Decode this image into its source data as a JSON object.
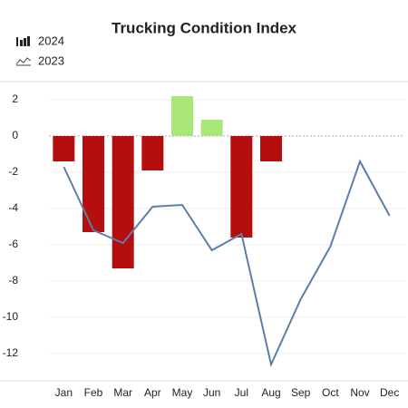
{
  "chart_data": {
    "type": "bar",
    "title": "Trucking Condition Index",
    "categories": [
      "Jan",
      "Feb",
      "Mar",
      "Apr",
      "May",
      "Jun",
      "Jul",
      "Aug",
      "Sep",
      "Oct",
      "Nov",
      "Dec"
    ],
    "series": [
      {
        "name": "2024",
        "type": "bar",
        "colors": [
          "#b50e0e",
          "#b50e0e",
          "#b50e0e",
          "#b50e0e",
          "#a9e878",
          "#a9e878",
          "#b50e0e",
          "#b50e0e",
          null,
          null,
          null,
          null
        ],
        "values": [
          -1.4,
          -5.3,
          -7.3,
          -1.9,
          2.2,
          0.9,
          -5.6,
          -1.4,
          null,
          null,
          null,
          null
        ]
      },
      {
        "name": "2023",
        "type": "line",
        "color": "#5b7fa8",
        "values": [
          -1.7,
          -5.2,
          -5.9,
          -3.9,
          -3.8,
          -6.3,
          -5.4,
          -12.6,
          -9.0,
          -6.1,
          -1.4,
          -4.4
        ]
      }
    ],
    "ylim": [
      -13.5,
      3
    ],
    "yticks": [
      -12,
      -10,
      -8,
      -6,
      -4,
      -2,
      0,
      2
    ],
    "grid": true
  }
}
